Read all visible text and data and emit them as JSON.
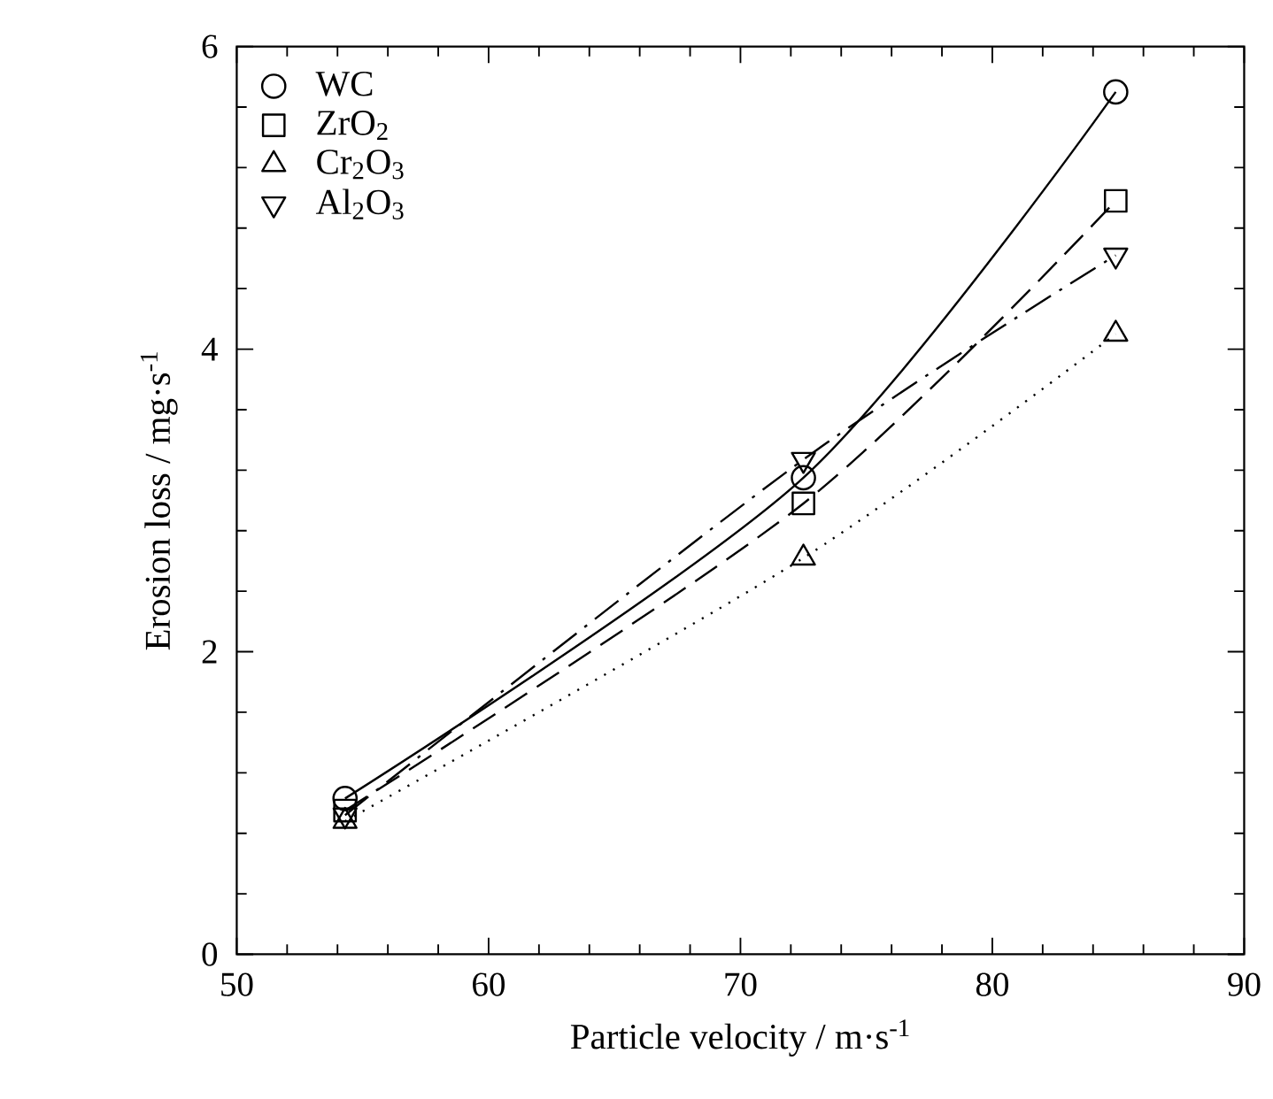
{
  "chart_data": {
    "type": "line",
    "xlabel": "Particle velocity / m·s$^{-1}$",
    "ylabel": "Erosion loss / mg·s$^{-1}$",
    "xlim": [
      50,
      90
    ],
    "xticks": [
      50,
      60,
      70,
      80,
      90
    ],
    "ylim": [
      0,
      6
    ],
    "yticks": [
      0,
      2,
      4,
      6
    ],
    "grid": false,
    "legend": "top left",
    "x": [
      54.3,
      72.5,
      84.9
    ],
    "series": [
      {
        "name": "WC",
        "color": "#000000",
        "marker": "circle",
        "line_style": "solid",
        "values": [
          1.03,
          3.15,
          5.7
        ]
      },
      {
        "name": "ZrO$_{2}$",
        "color": "#000000",
        "marker": "square",
        "line_style": "dashed",
        "values": [
          0.95,
          2.98,
          4.98
        ]
      },
      {
        "name": "Cr$_{2}$O$_{3}$",
        "color": "#000000",
        "marker": "triangle",
        "line_style": "dotted",
        "values": [
          0.88,
          2.62,
          4.1
        ]
      },
      {
        "name": "Al$_{2}$O$_{3}$",
        "color": "#000000",
        "marker": "triangle_down",
        "line_style": "dashdot",
        "values": [
          0.92,
          3.27,
          4.62
        ]
      }
    ]
  }
}
